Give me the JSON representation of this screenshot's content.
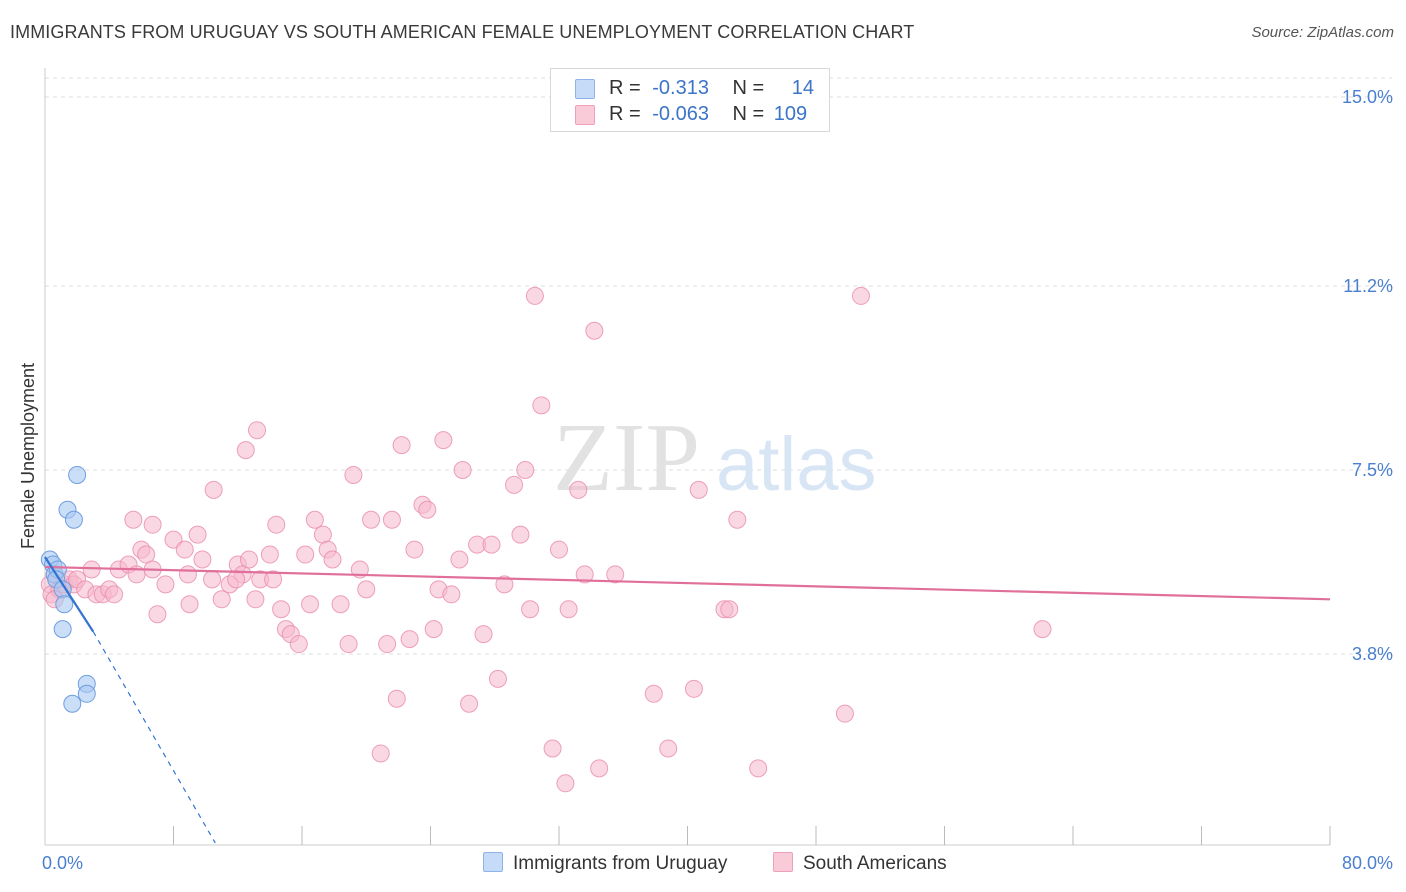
{
  "title": "IMMIGRANTS FROM URUGUAY VS SOUTH AMERICAN FEMALE UNEMPLOYMENT CORRELATION CHART",
  "source": "Source: ZipAtlas.com",
  "watermark": {
    "zip": "ZIP",
    "atlas": "atlas"
  },
  "legend": {
    "uruguay": {
      "r_label": "R =",
      "r_value": "-0.313",
      "n_label": "N =",
      "n_value": "14"
    },
    "south": {
      "r_label": "R =",
      "r_value": "-0.063",
      "n_label": "N =",
      "n_value": "109"
    }
  },
  "bottom_legend": {
    "uruguay": "Immigrants from Uruguay",
    "south": "South Americans"
  },
  "colors": {
    "uruguay_fill": "#a9c8f2",
    "uruguay_stroke": "#6f9edf",
    "uruguay_line": "#3274d0",
    "south_fill": "#f6b8cc",
    "south_stroke": "#ea8aab",
    "south_line": "#e07099",
    "grid": "#dddddd",
    "axis_label": "#4a7fd0"
  },
  "chart_data": {
    "type": "scatter",
    "title": "IMMIGRANTS FROM URUGUAY VS SOUTH AMERICAN FEMALE UNEMPLOYMENT CORRELATION CHART",
    "xlabel": "",
    "ylabel": "Female Unemployment",
    "xlim": [
      0,
      80
    ],
    "ylim": [
      0,
      15.0
    ],
    "x_tick_labels": [
      "0.0%",
      "80.0%"
    ],
    "y_ticks": [
      3.8,
      7.5,
      11.2,
      15.0
    ],
    "y_tick_labels": [
      "3.8%",
      "7.5%",
      "11.2%",
      "15.0%"
    ],
    "grid": true,
    "legend_position": "top-center",
    "series": [
      {
        "name": "Immigrants from Uruguay",
        "R": -0.313,
        "N": 14,
        "points": [
          [
            0.3,
            5.7
          ],
          [
            0.5,
            5.6
          ],
          [
            0.6,
            5.4
          ],
          [
            0.8,
            5.5
          ],
          [
            0.7,
            5.3
          ],
          [
            1.1,
            5.1
          ],
          [
            1.2,
            4.8
          ],
          [
            1.1,
            4.3
          ],
          [
            1.4,
            6.7
          ],
          [
            1.8,
            6.5
          ],
          [
            2.0,
            7.4
          ],
          [
            2.6,
            3.2
          ],
          [
            2.6,
            3.0
          ],
          [
            1.7,
            2.8
          ]
        ],
        "trend": {
          "x": [
            0.0,
            3.0
          ],
          "y": [
            5.75,
            4.25
          ]
        },
        "trend_extension": {
          "x": [
            3.0,
            10.6
          ],
          "y": [
            4.25,
            0.0
          ]
        }
      },
      {
        "name": "South Americans",
        "R": -0.063,
        "N": 109,
        "points": [
          [
            0.3,
            5.2
          ],
          [
            0.4,
            5.0
          ],
          [
            0.6,
            5.4
          ],
          [
            0.9,
            5.1
          ],
          [
            1.2,
            5.2
          ],
          [
            1.5,
            5.3
          ],
          [
            1.8,
            5.2
          ],
          [
            2.0,
            5.3
          ],
          [
            2.5,
            5.1
          ],
          [
            2.9,
            5.5
          ],
          [
            3.2,
            5.0
          ],
          [
            3.6,
            5.0
          ],
          [
            4.0,
            5.1
          ],
          [
            4.3,
            5.0
          ],
          [
            4.6,
            5.5
          ],
          [
            5.2,
            5.6
          ],
          [
            5.7,
            5.4
          ],
          [
            6.0,
            5.9
          ],
          [
            6.3,
            5.8
          ],
          [
            6.7,
            5.5
          ],
          [
            7.0,
            4.6
          ],
          [
            7.5,
            5.2
          ],
          [
            8.0,
            6.1
          ],
          [
            8.7,
            5.9
          ],
          [
            9.0,
            4.8
          ],
          [
            9.5,
            6.2
          ],
          [
            9.8,
            5.7
          ],
          [
            10.4,
            5.3
          ],
          [
            11.0,
            4.9
          ],
          [
            11.5,
            5.2
          ],
          [
            12.0,
            5.6
          ],
          [
            12.3,
            5.4
          ],
          [
            12.7,
            5.7
          ],
          [
            13.4,
            5.3
          ],
          [
            14.2,
            5.3
          ],
          [
            14.7,
            4.7
          ],
          [
            13.1,
            4.9
          ],
          [
            5.5,
            6.5
          ],
          [
            6.7,
            6.4
          ],
          [
            8.9,
            5.4
          ],
          [
            10.5,
            7.1
          ],
          [
            11.9,
            5.3
          ],
          [
            12.5,
            7.9
          ],
          [
            13.2,
            8.3
          ],
          [
            14.4,
            6.4
          ],
          [
            14.0,
            5.8
          ],
          [
            15.0,
            4.3
          ],
          [
            15.3,
            4.2
          ],
          [
            15.8,
            4.0
          ],
          [
            16.2,
            5.8
          ],
          [
            16.5,
            4.8
          ],
          [
            16.8,
            6.5
          ],
          [
            17.3,
            6.2
          ],
          [
            17.6,
            5.9
          ],
          [
            17.9,
            5.7
          ],
          [
            18.4,
            4.8
          ],
          [
            18.9,
            4.0
          ],
          [
            19.2,
            7.4
          ],
          [
            19.6,
            5.5
          ],
          [
            20.0,
            5.1
          ],
          [
            20.3,
            6.5
          ],
          [
            20.9,
            1.8
          ],
          [
            21.3,
            4.0
          ],
          [
            21.6,
            6.5
          ],
          [
            21.9,
            2.9
          ],
          [
            22.2,
            8.0
          ],
          [
            22.7,
            4.1
          ],
          [
            23.0,
            5.9
          ],
          [
            23.5,
            6.8
          ],
          [
            23.8,
            6.7
          ],
          [
            24.2,
            4.3
          ],
          [
            24.5,
            5.1
          ],
          [
            24.8,
            8.1
          ],
          [
            25.3,
            5.0
          ],
          [
            25.8,
            5.7
          ],
          [
            26.0,
            7.5
          ],
          [
            26.4,
            2.8
          ],
          [
            26.9,
            6.0
          ],
          [
            27.3,
            4.2
          ],
          [
            27.8,
            6.0
          ],
          [
            28.2,
            3.3
          ],
          [
            28.6,
            5.2
          ],
          [
            29.2,
            7.2
          ],
          [
            29.6,
            6.2
          ],
          [
            29.9,
            7.5
          ],
          [
            30.2,
            4.7
          ],
          [
            30.5,
            11.0
          ],
          [
            30.9,
            8.8
          ],
          [
            31.6,
            1.9
          ],
          [
            32.0,
            5.9
          ],
          [
            32.4,
            1.2
          ],
          [
            32.6,
            4.7
          ],
          [
            33.2,
            7.1
          ],
          [
            33.6,
            5.4
          ],
          [
            34.2,
            10.3
          ],
          [
            34.5,
            1.5
          ],
          [
            35.5,
            5.4
          ],
          [
            37.9,
            3.0
          ],
          [
            38.8,
            1.9
          ],
          [
            40.4,
            3.1
          ],
          [
            40.7,
            7.1
          ],
          [
            42.3,
            4.7
          ],
          [
            42.6,
            4.7
          ],
          [
            43.1,
            6.5
          ],
          [
            44.4,
            1.5
          ],
          [
            49.8,
            2.6
          ],
          [
            50.8,
            11.0
          ],
          [
            62.1,
            4.3
          ],
          [
            0.6,
            4.9
          ]
        ],
        "trend": {
          "x": [
            0.0,
            80.0
          ],
          "y": [
            5.55,
            4.9
          ]
        }
      }
    ]
  }
}
